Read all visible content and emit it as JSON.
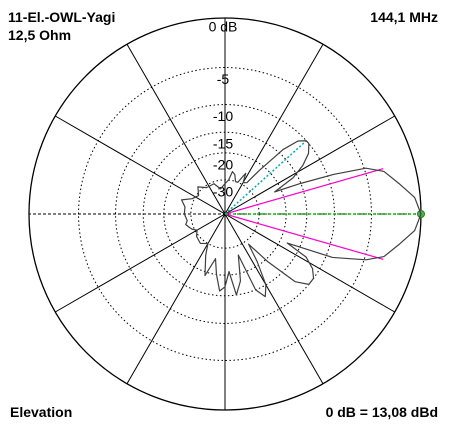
{
  "header": {
    "antenna_name": "11-El.-OWL-Yagi",
    "impedance": "12,5 Ohm",
    "frequency": "144,1 MHz"
  },
  "footer": {
    "view": "Elevation",
    "reference": "0 dB = 13,08 dBd"
  },
  "colors": {
    "grid": "#000000",
    "pattern": "#404040",
    "beamwidth_lines": "#ff00cc",
    "max_direction": "#00cc00",
    "secondary_lobe": "#00aaaa",
    "max_marker": "#44bb44"
  },
  "chart_data": {
    "type": "polar",
    "angle_unit": "deg",
    "radial_unit": "dB",
    "radial_rings": [
      "0 dB",
      "-5",
      "-10",
      "-15",
      "-20",
      "-30"
    ],
    "radial_ring_levels": [
      0,
      -5,
      -10,
      -15,
      -20,
      -30
    ],
    "radial_scale": "logarithmic (ARRL)",
    "max_direction_deg": 0,
    "half_power_beamwidth_deg": [
      -16,
      16
    ],
    "secondary_lobe_direction_deg": 42,
    "pattern": [
      {
        "angle": 0,
        "db": 0
      },
      {
        "angle": 5,
        "db": -0.5
      },
      {
        "angle": 10,
        "db": -1.8
      },
      {
        "angle": 15,
        "db": -3
      },
      {
        "angle": 18,
        "db": -4.8
      },
      {
        "angle": 20,
        "db": -9
      },
      {
        "angle": 22,
        "db": -15
      },
      {
        "angle": 24,
        "db": -22
      },
      {
        "angle": 28,
        "db": -16
      },
      {
        "angle": 32,
        "db": -13
      },
      {
        "angle": 36,
        "db": -11
      },
      {
        "angle": 40,
        "db": -10
      },
      {
        "angle": 42,
        "db": -10
      },
      {
        "angle": 45,
        "db": -11
      },
      {
        "angle": 48,
        "db": -14
      },
      {
        "angle": 52,
        "db": -22
      },
      {
        "angle": 55,
        "db": -28
      },
      {
        "angle": 60,
        "db": -29
      },
      {
        "angle": 63,
        "db": -25
      },
      {
        "angle": 66,
        "db": -28
      },
      {
        "angle": 68,
        "db": -30
      },
      {
        "angle": 72,
        "db": -30
      },
      {
        "angle": 76,
        "db": -27
      },
      {
        "angle": 80,
        "db": -26
      },
      {
        "angle": 84,
        "db": -30
      },
      {
        "angle": 90,
        "db": -32
      },
      {
        "angle": 100,
        "db": -35
      },
      {
        "angle": 110,
        "db": -31
      },
      {
        "angle": 125,
        "db": -31
      },
      {
        "angle": 135,
        "db": -28
      },
      {
        "angle": 145,
        "db": -31
      },
      {
        "angle": 155,
        "db": -29
      },
      {
        "angle": 162,
        "db": -25
      },
      {
        "angle": 170,
        "db": -27
      },
      {
        "angle": 180,
        "db": -27
      },
      {
        "angle": 190,
        "db": -28
      },
      {
        "angle": 195,
        "db": -27
      },
      {
        "angle": 200,
        "db": -28
      },
      {
        "angle": 205,
        "db": -29
      },
      {
        "angle": 210,
        "db": -31
      },
      {
        "angle": 218,
        "db": -29
      },
      {
        "angle": 230,
        "db": -28
      },
      {
        "angle": 240,
        "db": -30
      },
      {
        "angle": 245,
        "db": -25
      },
      {
        "angle": 252,
        "db": -19
      },
      {
        "angle": 258,
        "db": -25
      },
      {
        "angle": 262,
        "db": -20
      },
      {
        "angle": 266,
        "db": -16
      },
      {
        "angle": 270,
        "db": -17
      },
      {
        "angle": 274,
        "db": -21
      },
      {
        "angle": 278,
        "db": -15
      },
      {
        "angle": 283,
        "db": -18
      },
      {
        "angle": 288,
        "db": -26
      },
      {
        "angle": 292,
        "db": -15
      },
      {
        "angle": 296,
        "db": -13
      },
      {
        "angle": 300,
        "db": -15
      },
      {
        "angle": 304,
        "db": -21
      },
      {
        "angle": 308,
        "db": -28
      },
      {
        "angle": 312,
        "db": -19
      },
      {
        "angle": 316,
        "db": -12
      },
      {
        "angle": 320,
        "db": -10
      },
      {
        "angle": 324,
        "db": -10
      },
      {
        "angle": 328,
        "db": -11
      },
      {
        "angle": 332,
        "db": -13
      },
      {
        "angle": 335,
        "db": -18
      },
      {
        "angle": 338,
        "db": -9
      },
      {
        "angle": 342,
        "db": -4.8
      },
      {
        "angle": 345,
        "db": -3
      },
      {
        "angle": 350,
        "db": -1.8
      },
      {
        "angle": 355,
        "db": -0.5
      },
      {
        "angle": 360,
        "db": 0
      }
    ]
  }
}
